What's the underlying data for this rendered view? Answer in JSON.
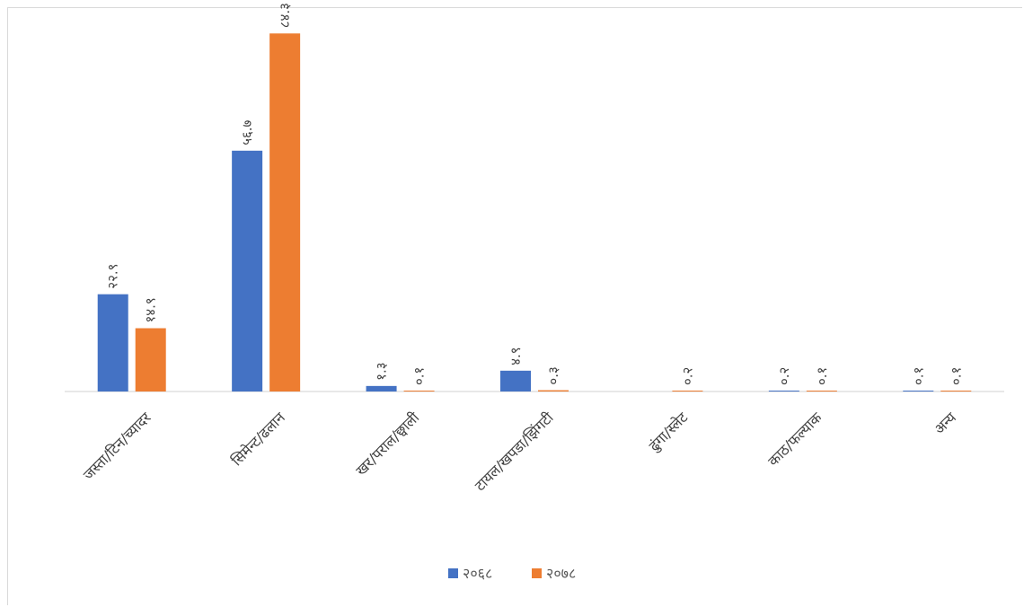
{
  "chart_data": {
    "type": "bar",
    "categories": [
      "जस्ता/टिन/च्यादर",
      "सिमेन्ट/ढलान",
      "खर/पराल/छ्वाली",
      "टायल/खपडा/झिंगटी",
      "ढुंगा/स्लेट",
      "काठ/फल्याक",
      "अन्य"
    ],
    "series": [
      {
        "name": "२०६८",
        "values": [
          22.9,
          56.7,
          1.3,
          4.9,
          null,
          0.2,
          0.1
        ],
        "labels": [
          "२२.९",
          "५६.७",
          "१.३",
          "४.९",
          "",
          "०.२",
          "०.१"
        ],
        "color": "#4472C4"
      },
      {
        "name": "२०७८",
        "values": [
          14.9,
          84.3,
          0.1,
          0.3,
          0.2,
          0.1,
          0.1
        ],
        "labels": [
          "१४.९",
          "८४.३",
          "०.१",
          "०.३",
          "०.२",
          "०.१",
          "०.१"
        ],
        "color": "#ED7D31"
      }
    ],
    "ylim": [
      0,
      100
    ],
    "grid": false,
    "legend": "bottom",
    "data_labels_rotated": true
  }
}
